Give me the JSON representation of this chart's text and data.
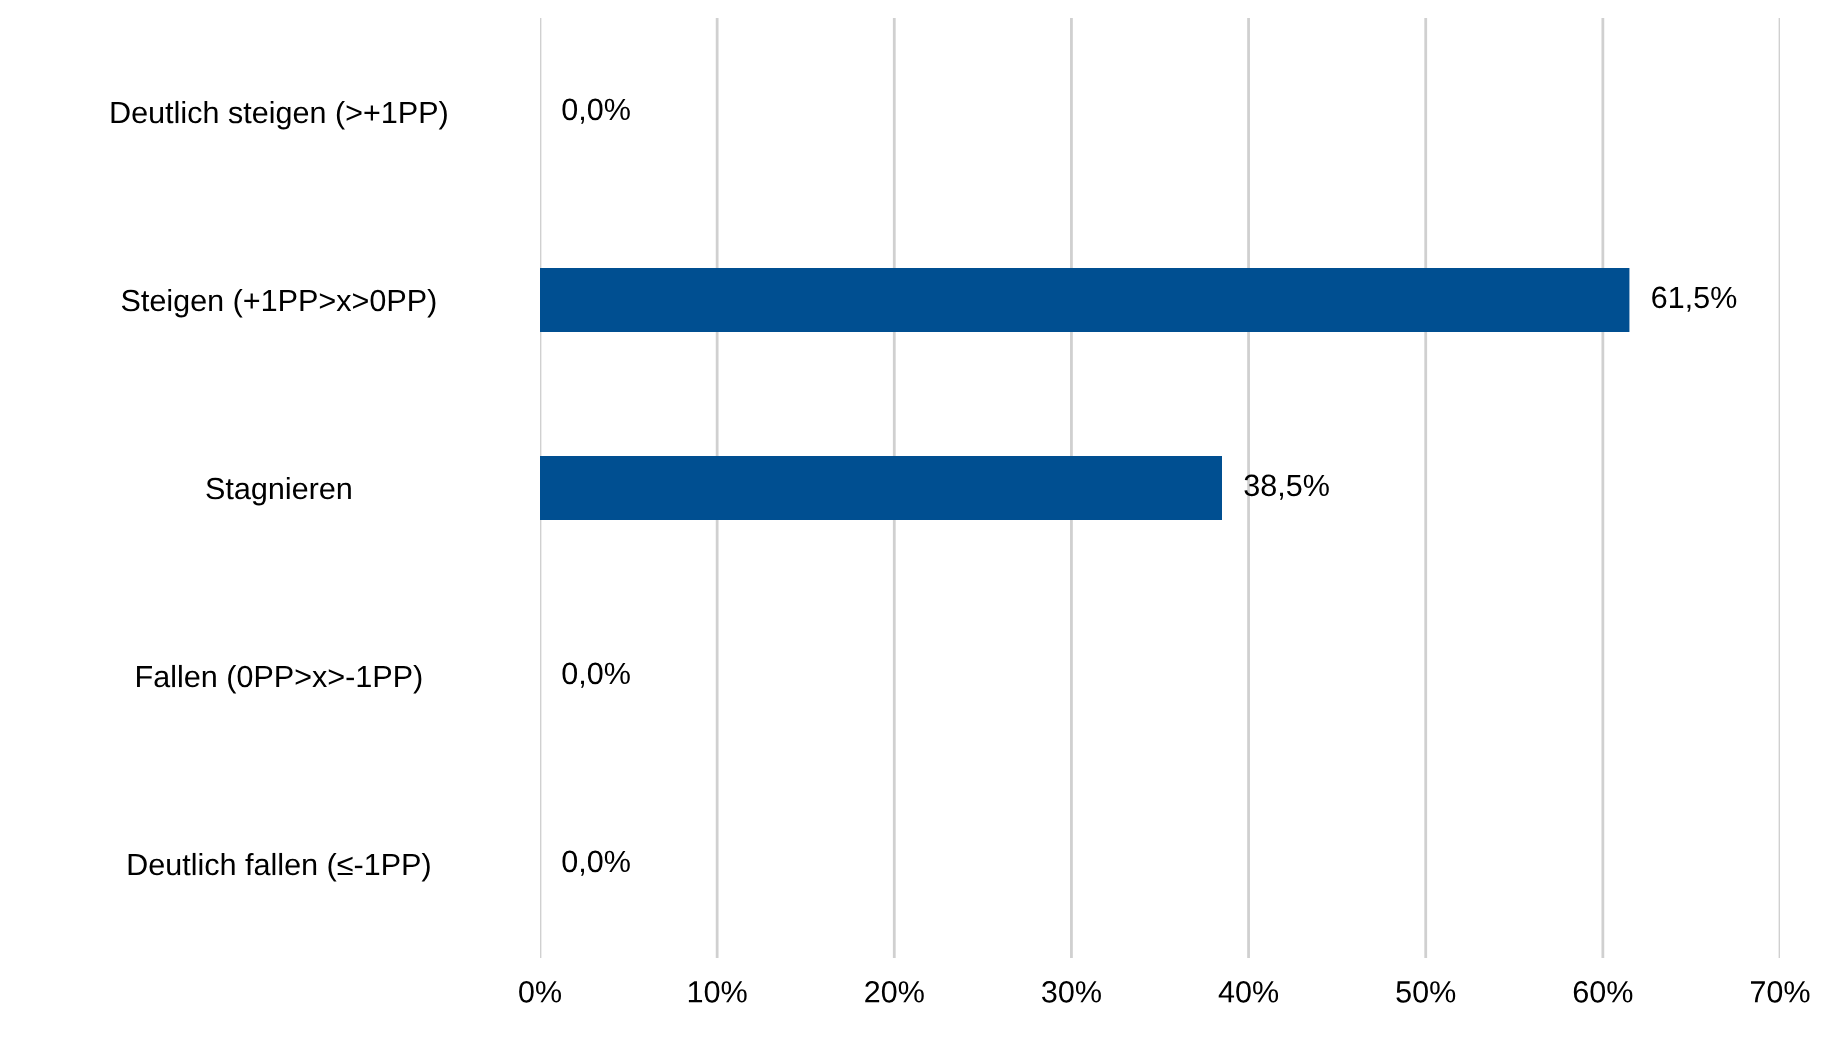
{
  "chart_data": {
    "type": "bar",
    "orientation": "horizontal",
    "categories": [
      "Deutlich steigen (>+1PP)",
      "Steigen (+1PP>x>0PP)",
      "Stagnieren",
      "Fallen (0PP>x>-1PP)",
      "Deutlich fallen (≤-1PP)"
    ],
    "values": [
      0,
      61.5,
      38.5,
      0,
      0
    ],
    "value_labels": [
      "0,0%",
      "61,5%",
      "38,5%",
      "0,0%",
      "0,0%"
    ],
    "color": "#004f91",
    "xlim": [
      0,
      70
    ],
    "xticks": [
      {
        "value": 0,
        "label": "0%"
      },
      {
        "value": 10,
        "label": "10%"
      },
      {
        "value": 20,
        "label": "20%"
      },
      {
        "value": 30,
        "label": "30%"
      },
      {
        "value": 40,
        "label": "40%"
      },
      {
        "value": 50,
        "label": "50%"
      },
      {
        "value": 60,
        "label": "60%"
      },
      {
        "value": 70,
        "label": "70%"
      }
    ],
    "grid": "x",
    "legend": false
  }
}
